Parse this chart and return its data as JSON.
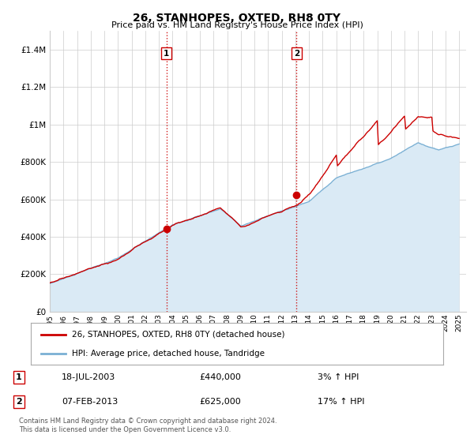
{
  "title": "26, STANHOPES, OXTED, RH8 0TY",
  "subtitle": "Price paid vs. HM Land Registry's House Price Index (HPI)",
  "ylabel_ticks": [
    "£0",
    "£200K",
    "£400K",
    "£600K",
    "£800K",
    "£1M",
    "£1.2M",
    "£1.4M"
  ],
  "ytick_values": [
    0,
    200000,
    400000,
    600000,
    800000,
    1000000,
    1200000,
    1400000
  ],
  "ylim": [
    0,
    1500000
  ],
  "xlim_start": 1995.0,
  "xlim_end": 2025.5,
  "sale1_date": 2003.54,
  "sale1_price": 440000,
  "sale1_label": "1",
  "sale2_date": 2013.09,
  "sale2_price": 625000,
  "sale2_label": "2",
  "line_color_red": "#cc0000",
  "line_color_blue": "#7ab0d4",
  "fill_color_blue": "#daeaf5",
  "vline_color": "#cc0000",
  "grid_color": "#cccccc",
  "background_color": "#ffffff",
  "legend_label_red": "26, STANHOPES, OXTED, RH8 0TY (detached house)",
  "legend_label_blue": "HPI: Average price, detached house, Tandridge",
  "table_row1": [
    "1",
    "18-JUL-2003",
    "£440,000",
    "3% ↑ HPI"
  ],
  "table_row2": [
    "2",
    "07-FEB-2013",
    "£625,000",
    "17% ↑ HPI"
  ],
  "footer": "Contains HM Land Registry data © Crown copyright and database right 2024.\nThis data is licensed under the Open Government Licence v3.0.",
  "xtick_years": [
    1995,
    1996,
    1997,
    1998,
    1999,
    2000,
    2001,
    2002,
    2003,
    2004,
    2005,
    2006,
    2007,
    2008,
    2009,
    2010,
    2011,
    2012,
    2013,
    2014,
    2015,
    2016,
    2017,
    2018,
    2019,
    2020,
    2021,
    2022,
    2023,
    2024,
    2025
  ]
}
